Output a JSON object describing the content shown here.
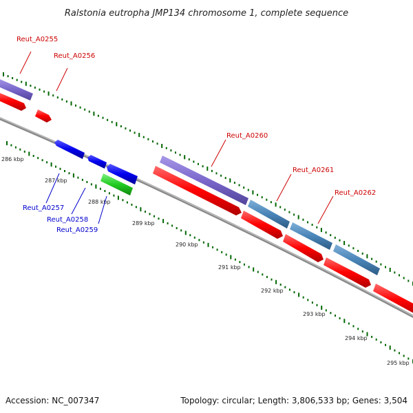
{
  "title": "Ralstonia eutropha JMP134 chromosome 1, complete sequence",
  "footer": {
    "accession": "Accession: NC_007347",
    "summary": "Topology: circular; Length: 3,806,533 bp; Genes: 3,504"
  },
  "scale_labels": [
    "286 kbp",
    "287 kbp",
    "288 kbp",
    "289 kbp",
    "290 kbp",
    "291 kbp",
    "292 kbp",
    "293 kbp",
    "294 kbp",
    "295 kbp"
  ],
  "genes": {
    "outer": [
      "Reut_A0255",
      "Reut_A0256",
      "Reut_A0260",
      "Reut_A0261",
      "Reut_A0262"
    ],
    "inner": [
      "Reut_A0257",
      "Reut_A0258",
      "Reut_A0259"
    ]
  },
  "colors": {
    "outer_label": "#cc0000",
    "inner_label": "#0000cc",
    "red_cds": "#ff0000",
    "purple_gene": "#7b68cc",
    "steel_gene": "#4a85b8",
    "blue_gene": "#0000ee",
    "green_gene": "#22cc22",
    "tick": "#006600",
    "backbone": "#8a8a8a"
  }
}
